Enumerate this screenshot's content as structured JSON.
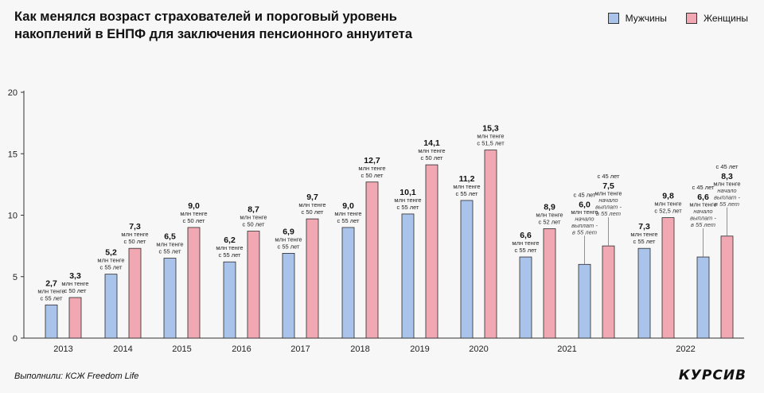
{
  "header": {
    "title": "Как менялся возраст страхователей и пороговый уровень накоплений в ЕНПФ для заключения пенсионного аннуитета"
  },
  "legend": {
    "men_label": "Мужчины",
    "women_label": "Женщины",
    "men_color": "#a9c3ea",
    "women_color": "#f1a8b2"
  },
  "footer": {
    "source": "Выполнили: КСЖ Freedom Life",
    "logo": "КУРСИВ"
  },
  "chart_data": {
    "type": "bar",
    "ylim": [
      0,
      20
    ],
    "yticks": [
      "0",
      "5",
      "10",
      "15",
      "20"
    ],
    "categories": [
      "2013",
      "2014",
      "2015",
      "2016",
      "2017",
      "2018",
      "2019",
      "2020",
      "2021",
      "2022"
    ],
    "bars": [
      {
        "group": "2013",
        "series": "Мужчины",
        "value": 2.7,
        "label": "2,7",
        "note": [
          "млн тенге",
          "с 55 лет"
        ]
      },
      {
        "group": "2013",
        "series": "Женщины",
        "value": 3.3,
        "label": "3,3",
        "note": [
          "млн тенге",
          "с 50 лет"
        ]
      },
      {
        "group": "2014",
        "series": "Мужчины",
        "value": 5.2,
        "label": "5,2",
        "note": [
          "млн тенге",
          "с 55 лет"
        ]
      },
      {
        "group": "2014",
        "series": "Женщины",
        "value": 7.3,
        "label": "7,3",
        "note": [
          "млн тенге",
          "с 50 лет"
        ]
      },
      {
        "group": "2015",
        "series": "Мужчины",
        "value": 6.5,
        "label": "6,5",
        "note": [
          "млн тенге",
          "с 55 лет"
        ]
      },
      {
        "group": "2015",
        "series": "Женщины",
        "value": 9.0,
        "label": "9,0",
        "note": [
          "млн тенге",
          "с 50 лет"
        ]
      },
      {
        "group": "2016",
        "series": "Мужчины",
        "value": 6.2,
        "label": "6,2",
        "note": [
          "млн тенге",
          "с 55 лет"
        ]
      },
      {
        "group": "2016",
        "series": "Женщины",
        "value": 8.7,
        "label": "8,7",
        "note": [
          "млн тенге",
          "с 50 лет"
        ]
      },
      {
        "group": "2017",
        "series": "Мужчины",
        "value": 6.9,
        "label": "6,9",
        "note": [
          "млн тенге",
          "с 55 лет"
        ]
      },
      {
        "group": "2017",
        "series": "Женщины",
        "value": 9.7,
        "label": "9,7",
        "note": [
          "млн тенге",
          "с 50 лет"
        ]
      },
      {
        "group": "2018",
        "series": "Мужчины",
        "value": 9.0,
        "label": "9,0",
        "note": [
          "млн тенге",
          "с 55 лет"
        ]
      },
      {
        "group": "2018",
        "series": "Женщины",
        "value": 12.7,
        "label": "12,7",
        "note": [
          "млн тенге",
          "с 50 лет"
        ]
      },
      {
        "group": "2019",
        "series": "Мужчины",
        "value": 10.1,
        "label": "10,1",
        "note": [
          "млн тенге",
          "с 55 лет"
        ]
      },
      {
        "group": "2019",
        "series": "Женщины",
        "value": 14.1,
        "label": "14,1",
        "note": [
          "млн тенге",
          "с 50 лет"
        ]
      },
      {
        "group": "2020",
        "series": "Мужчины",
        "value": 11.2,
        "label": "11,2",
        "note": [
          "млн тенге",
          "с 55 лет"
        ]
      },
      {
        "group": "2020",
        "series": "Женщины",
        "value": 15.3,
        "label": "15,3",
        "note": [
          "млн тенге",
          "с 51,5 лет"
        ]
      },
      {
        "group": "2021",
        "series": "Мужчины",
        "value": 6.6,
        "label": "6,6",
        "note": [
          "млн тенге",
          "с 55 лет"
        ]
      },
      {
        "group": "2021",
        "series": "Женщины",
        "value": 8.9,
        "label": "8,9",
        "note": [
          "млн тенге",
          "с 52 лет"
        ]
      },
      {
        "group": "2021",
        "series": "Мужчины",
        "value": 6.0,
        "label": "6,0",
        "pre": "с 45 лет",
        "note": [
          "млн тенге"
        ],
        "italic": [
          "начало",
          "выплат -",
          "в 55 лет"
        ]
      },
      {
        "group": "2021",
        "series": "Женщины",
        "value": 7.5,
        "label": "7,5",
        "pre": "с 45 лет",
        "note": [
          "млн тенге"
        ],
        "italic": [
          "начало",
          "выплат -",
          "в 55 лет"
        ]
      },
      {
        "group": "2022",
        "series": "Мужчины",
        "value": 7.3,
        "label": "7,3",
        "note": [
          "млн тенге",
          "с 55 лет"
        ]
      },
      {
        "group": "2022",
        "series": "Женщины",
        "value": 9.8,
        "label": "9,8",
        "note": [
          "млн тенге",
          "с 52,5 лет"
        ]
      },
      {
        "group": "2022",
        "series": "Мужчины",
        "value": 6.6,
        "label": "6,6",
        "pre": "с 45 лет",
        "note": [
          "млн тенге"
        ],
        "italic": [
          "начало",
          "выплат -",
          "в 55 лет"
        ]
      },
      {
        "group": "2022",
        "series": "Женщины",
        "value": 8.3,
        "label": "8,3",
        "pre": "с 45 лет",
        "note": [
          "млн тенге"
        ],
        "italic": [
          "начало",
          "выплат -",
          "в 55 лет"
        ]
      }
    ]
  }
}
